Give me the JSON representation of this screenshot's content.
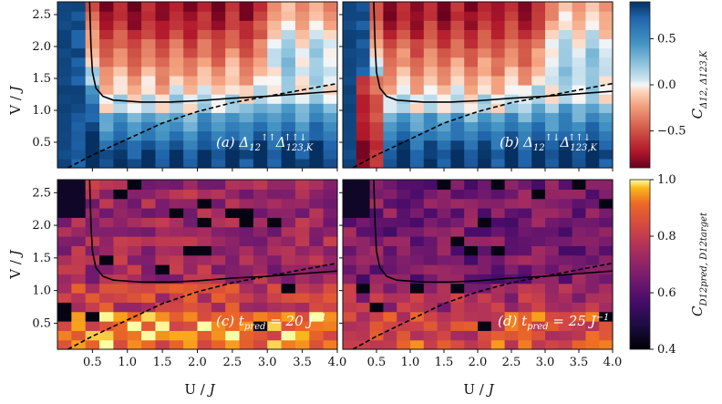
{
  "chart_data": [
    {
      "type": "heatmap",
      "panel": "a",
      "label": "(a) Δ₁₂↑↑ Δ₁₂₃,K↑↑↓",
      "xlabel": "U / J",
      "ylabel": "V / J",
      "xlim": [
        0,
        4.0
      ],
      "ylim": [
        0.1,
        2.7
      ],
      "x_ticks": [
        "0.5",
        "1.0",
        "1.5",
        "2.0",
        "2.5",
        "3.0",
        "3.5",
        "4.0"
      ],
      "y_ticks": [
        "0.5",
        "1.0",
        "1.5",
        "2.0",
        "2.5"
      ],
      "colormap": "RdBu",
      "vmin": -0.9,
      "vmax": 0.9
    },
    {
      "type": "heatmap",
      "panel": "b",
      "label": "(b) Δ₁₂↑↓ Δ₁₂₃,K↑↑↓",
      "xlabel": "U / J",
      "ylabel": "V / J",
      "xlim": [
        0,
        4.0
      ],
      "ylim": [
        0.1,
        2.7
      ],
      "colormap": "RdBu",
      "vmin": -0.9,
      "vmax": 0.9
    },
    {
      "type": "heatmap",
      "panel": "c",
      "label": "(c) t_pred = 20 J⁻¹",
      "xlabel": "U / J",
      "ylabel": "V / J",
      "xlim": [
        0,
        4.0
      ],
      "ylim": [
        0.1,
        2.7
      ],
      "colormap": "inferno",
      "vmin": 0.4,
      "vmax": 1.0
    },
    {
      "type": "heatmap",
      "panel": "d",
      "label": "(d) t_pred = 25 J⁻¹",
      "xlabel": "U / J",
      "ylabel": "V / J",
      "xlim": [
        0,
        4.0
      ],
      "ylim": [
        0.1,
        2.7
      ],
      "colormap": "inferno",
      "vmin": 0.4,
      "vmax": 1.0
    }
  ],
  "colorbars": {
    "top": {
      "label": "C Δ12, Δ123,K",
      "ticks": [
        "0.5",
        "0.0",
        "−0.5"
      ],
      "tick_values": [
        0.5,
        0.0,
        -0.5
      ]
    },
    "bottom": {
      "label": "C D12pred, D12target",
      "ticks": [
        "1.0",
        "0.8",
        "0.6",
        "0.4"
      ],
      "tick_values": [
        1.0,
        0.8,
        0.6,
        0.4
      ]
    }
  },
  "boundaries": {
    "solid": [
      [
        0.46,
        2.7
      ],
      [
        0.48,
        2.0
      ],
      [
        0.5,
        1.6
      ],
      [
        0.55,
        1.35
      ],
      [
        0.65,
        1.22
      ],
      [
        0.8,
        1.16
      ],
      [
        1.2,
        1.13
      ],
      [
        1.6,
        1.13
      ],
      [
        2.0,
        1.15
      ],
      [
        2.5,
        1.19
      ],
      [
        3.0,
        1.22
      ],
      [
        3.5,
        1.26
      ],
      [
        4.0,
        1.3
      ]
    ],
    "dashed": [
      [
        0.15,
        0.1
      ],
      [
        0.5,
        0.3
      ],
      [
        1.0,
        0.55
      ],
      [
        1.5,
        0.8
      ],
      [
        2.0,
        0.98
      ],
      [
        2.5,
        1.12
      ],
      [
        3.0,
        1.22
      ],
      [
        3.5,
        1.32
      ],
      [
        4.0,
        1.42
      ]
    ]
  }
}
